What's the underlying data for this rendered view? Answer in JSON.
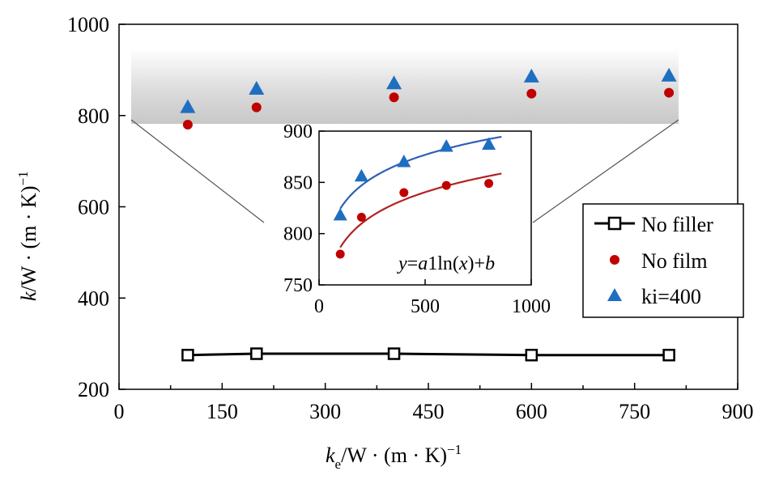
{
  "chart_data": [
    {
      "type": "scatter",
      "role": "main",
      "xlim": [
        0,
        900
      ],
      "ylim": [
        200,
        1000
      ],
      "x_ticks": [
        "0",
        "150",
        "300",
        "450",
        "600",
        "750",
        "900"
      ],
      "y_ticks": [
        "200",
        "400",
        "600",
        "800",
        "1000"
      ],
      "xlabel": {
        "main": "k",
        "sub": "e",
        "rest": "/W · (m · K)",
        "sup": "−1"
      },
      "ylabel": {
        "main": "k",
        "rest": "/W · (m · K)",
        "sup": "−1"
      },
      "grid": false,
      "legend_position": "right",
      "series": [
        {
          "name": "No filler",
          "marker": "square-open",
          "line": true,
          "color": "#000000",
          "x": [
            100,
            200,
            400,
            600,
            800
          ],
          "y": [
            275,
            278,
            278,
            275,
            275
          ]
        },
        {
          "name": "No film",
          "marker": "circle",
          "line": false,
          "color": "#c00000",
          "x": [
            100,
            200,
            400,
            600,
            800
          ],
          "y": [
            780,
            818,
            840,
            848,
            850
          ]
        },
        {
          "name": "ki=400",
          "marker": "triangle",
          "line": false,
          "color": "#1f6fc1",
          "x": [
            100,
            200,
            400,
            600,
            800
          ],
          "y": [
            818,
            858,
            870,
            885,
            887
          ]
        }
      ]
    },
    {
      "type": "scatter",
      "role": "inset",
      "xlim": [
        0,
        1000
      ],
      "ylim": [
        750,
        900
      ],
      "x_ticks": [
        "0",
        "500",
        "1000"
      ],
      "y_ticks": [
        "750",
        "800",
        "850",
        "900"
      ],
      "annotation": {
        "y": "y",
        "eq": "=",
        "a": "a",
        "mid": "1ln(",
        "x": "x",
        "close": ")+",
        "b": "b"
      },
      "series": [
        {
          "name": "No film",
          "marker": "circle",
          "color": "#c00000",
          "x": [
            100,
            200,
            400,
            600,
            800
          ],
          "y": [
            780,
            816,
            840,
            847,
            849
          ],
          "fit_color": "#b22222",
          "fit_range": [
            100,
            860
          ]
        },
        {
          "name": "ki=400",
          "marker": "triangle",
          "color": "#1f6fc1",
          "x": [
            100,
            200,
            400,
            600,
            800
          ],
          "y": [
            818,
            856,
            870,
            885,
            887
          ],
          "fit_color": "#2e5fb5",
          "fit_range": [
            100,
            860
          ]
        }
      ]
    }
  ]
}
